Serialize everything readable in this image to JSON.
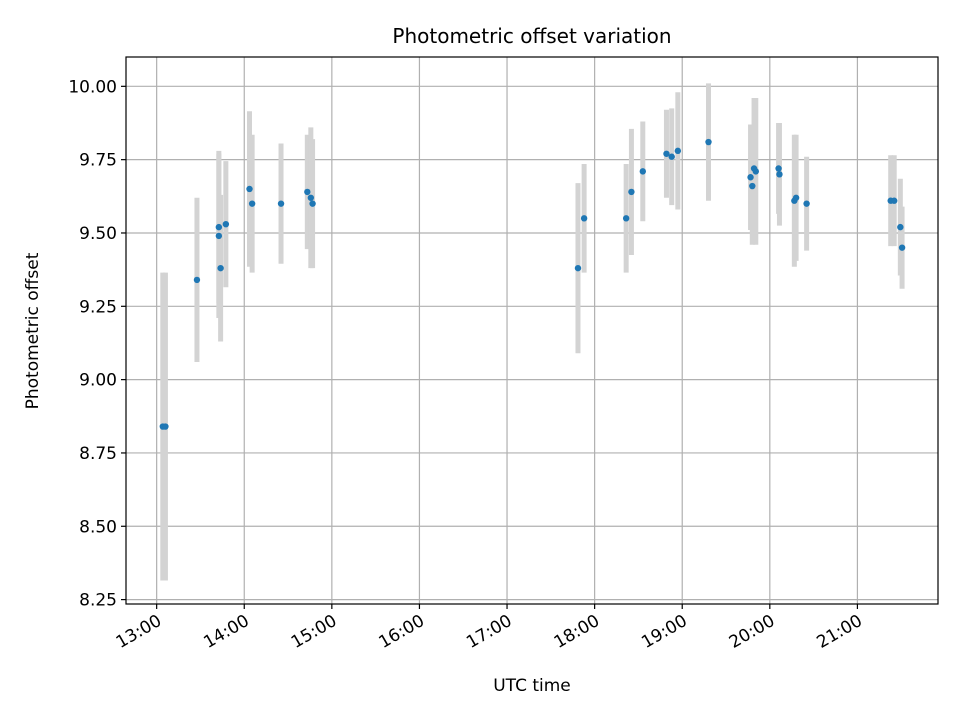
{
  "chart_data": {
    "type": "scatter",
    "title": "Photometric offset variation",
    "xlabel": "UTC time",
    "ylabel": "Photometric offset",
    "x_unit": "hours UTC",
    "xlim": [
      12.65,
      21.92
    ],
    "ylim": [
      8.235,
      10.1
    ],
    "x_ticks": [
      13,
      14,
      15,
      16,
      17,
      18,
      19,
      20,
      21
    ],
    "x_tick_labels": [
      "13:00",
      "14:00",
      "15:00",
      "16:00",
      "17:00",
      "18:00",
      "19:00",
      "20:00",
      "21:00"
    ],
    "y_ticks": [
      8.25,
      8.5,
      8.75,
      9.0,
      9.25,
      9.5,
      9.75,
      10.0
    ],
    "y_tick_labels": [
      "8.25",
      "8.50",
      "8.75",
      "9.00",
      "9.25",
      "9.50",
      "9.75",
      "10.00"
    ],
    "grid": true,
    "colors": {
      "point": "#1f77b4",
      "errorbar": "#d3d3d3"
    },
    "points": [
      {
        "x": 13.07,
        "y": 8.84,
        "err": 0.525
      },
      {
        "x": 13.1,
        "y": 8.84,
        "err": 0.525
      },
      {
        "x": 13.46,
        "y": 9.34,
        "err": 0.28
      },
      {
        "x": 13.71,
        "y": 9.52,
        "err": 0.26
      },
      {
        "x": 13.71,
        "y": 9.49,
        "err": 0.28
      },
      {
        "x": 13.73,
        "y": 9.38,
        "err": 0.25
      },
      {
        "x": 13.79,
        "y": 9.53,
        "err": 0.215
      },
      {
        "x": 14.06,
        "y": 9.65,
        "err": 0.265
      },
      {
        "x": 14.09,
        "y": 9.6,
        "err": 0.235
      },
      {
        "x": 14.42,
        "y": 9.6,
        "err": 0.205
      },
      {
        "x": 14.72,
        "y": 9.64,
        "err": 0.195
      },
      {
        "x": 14.76,
        "y": 9.62,
        "err": 0.24
      },
      {
        "x": 14.78,
        "y": 9.6,
        "err": 0.22
      },
      {
        "x": 17.81,
        "y": 9.38,
        "err": 0.29
      },
      {
        "x": 17.88,
        "y": 9.55,
        "err": 0.185
      },
      {
        "x": 18.36,
        "y": 9.55,
        "err": 0.185
      },
      {
        "x": 18.42,
        "y": 9.64,
        "err": 0.215
      },
      {
        "x": 18.55,
        "y": 9.71,
        "err": 0.17
      },
      {
        "x": 18.82,
        "y": 9.77,
        "err": 0.15
      },
      {
        "x": 18.88,
        "y": 9.76,
        "err": 0.165
      },
      {
        "x": 18.95,
        "y": 9.78,
        "err": 0.2
      },
      {
        "x": 19.3,
        "y": 9.81,
        "err": 0.2
      },
      {
        "x": 19.78,
        "y": 9.69,
        "err": 0.18
      },
      {
        "x": 19.8,
        "y": 9.66,
        "err": 0.2
      },
      {
        "x": 19.82,
        "y": 9.72,
        "err": 0.24
      },
      {
        "x": 19.84,
        "y": 9.71,
        "err": 0.25
      },
      {
        "x": 20.1,
        "y": 9.72,
        "err": 0.155
      },
      {
        "x": 20.11,
        "y": 9.7,
        "err": 0.175
      },
      {
        "x": 20.28,
        "y": 9.61,
        "err": 0.225
      },
      {
        "x": 20.3,
        "y": 9.62,
        "err": 0.215
      },
      {
        "x": 20.42,
        "y": 9.6,
        "err": 0.16
      },
      {
        "x": 21.38,
        "y": 9.61,
        "err": 0.155
      },
      {
        "x": 21.42,
        "y": 9.61,
        "err": 0.155
      },
      {
        "x": 21.49,
        "y": 9.52,
        "err": 0.165
      },
      {
        "x": 21.51,
        "y": 9.45,
        "err": 0.14
      }
    ]
  }
}
